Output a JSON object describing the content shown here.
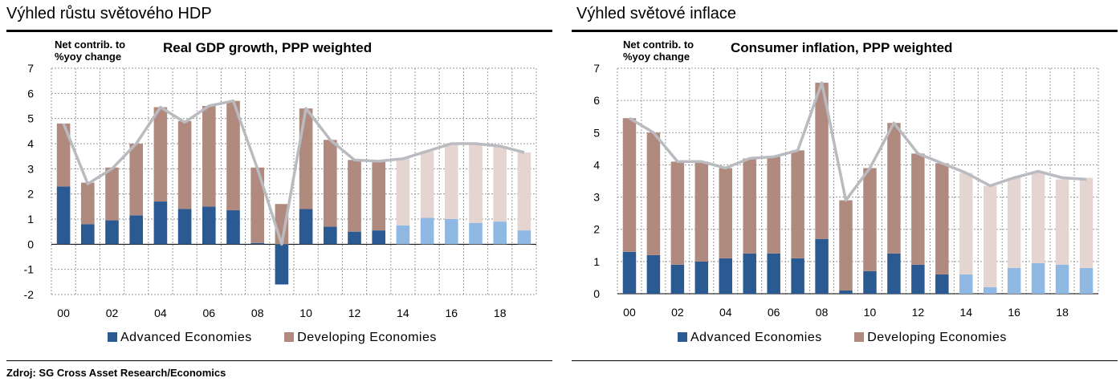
{
  "source": "Zdroj: SG Cross Asset Research/Economics",
  "panels": [
    {
      "panel_title": "Výhled růstu světového HDP",
      "chart_title": "Real GDP growth, PPP weighted",
      "unit_label": [
        "Net contrib. to",
        "%yoy change"
      ],
      "legend": [
        "Advanced Economies",
        "Developing Economies"
      ]
    },
    {
      "panel_title": "Výhled světové inflace",
      "chart_title": "Consumer inflation, PPP weighted",
      "unit_label": [
        "Net contrib. to",
        "%yoy change"
      ],
      "legend": [
        "Advanced  Economies",
        "Developing  Economies"
      ]
    }
  ],
  "colors": {
    "advanced": "#2b5a93",
    "advanced_forecast": "#8fb8e2",
    "developing": "#b08a7e",
    "developing_forecast": "#e4d5d1",
    "total_line": "#b9bbc1",
    "grid": "#9a9a9a"
  },
  "chart_data": [
    {
      "type": "bar",
      "stacked": true,
      "title": "Real GDP growth, PPP weighted",
      "ylabel": "Net contrib. to %yoy change",
      "ylim": [
        -2,
        7
      ],
      "yticks": [
        "-2",
        "-1",
        "0",
        "1",
        "2",
        "3",
        "4",
        "5",
        "6",
        "7"
      ],
      "categories": [
        "00",
        "01",
        "02",
        "03",
        "04",
        "05",
        "06",
        "07",
        "08",
        "09",
        "10",
        "11",
        "12",
        "13",
        "14",
        "15",
        "16",
        "17",
        "18",
        "19"
      ],
      "xtick_labels": [
        "00",
        "02",
        "04",
        "06",
        "08",
        "10",
        "12",
        "14",
        "16",
        "18"
      ],
      "forecast_from": "14",
      "grid": true,
      "legend_position": "bottom",
      "series": [
        {
          "name": "Advanced Economies",
          "values": [
            2.3,
            0.8,
            0.95,
            1.15,
            1.7,
            1.4,
            1.5,
            1.35,
            0.05,
            -1.6,
            1.4,
            0.7,
            0.5,
            0.55,
            0.75,
            1.05,
            1.0,
            0.85,
            0.9,
            0.55
          ]
        },
        {
          "name": "Developing Economies",
          "values": [
            2.5,
            1.65,
            2.1,
            2.85,
            3.75,
            3.5,
            4.0,
            4.35,
            3.0,
            1.6,
            4.0,
            3.45,
            2.85,
            2.75,
            2.65,
            2.65,
            3.0,
            3.15,
            3.0,
            3.1
          ]
        },
        {
          "name": "Total",
          "type": "line",
          "values": [
            4.8,
            2.4,
            3.0,
            4.0,
            5.45,
            4.85,
            5.5,
            5.7,
            3.0,
            0.0,
            5.4,
            4.15,
            3.35,
            3.3,
            3.4,
            3.7,
            4.0,
            4.0,
            3.9,
            3.65
          ]
        }
      ]
    },
    {
      "type": "bar",
      "stacked": true,
      "title": "Consumer inflation, PPP weighted",
      "ylabel": "Net contrib. to %yoy change",
      "ylim": [
        0,
        7
      ],
      "yticks": [
        "0",
        "1",
        "2",
        "3",
        "4",
        "5",
        "6",
        "7"
      ],
      "categories": [
        "00",
        "01",
        "02",
        "03",
        "04",
        "05",
        "06",
        "07",
        "08",
        "09",
        "10",
        "11",
        "12",
        "13",
        "14",
        "15",
        "16",
        "17",
        "18",
        "19"
      ],
      "xtick_labels": [
        "00",
        "02",
        "04",
        "06",
        "08",
        "10",
        "12",
        "14",
        "16",
        "18"
      ],
      "forecast_from": "14",
      "grid": true,
      "legend_position": "bottom",
      "series": [
        {
          "name": "Advanced Economies",
          "values": [
            1.3,
            1.2,
            0.9,
            1.0,
            1.1,
            1.25,
            1.25,
            1.1,
            1.7,
            0.1,
            0.7,
            1.25,
            0.9,
            0.6,
            0.6,
            0.2,
            0.8,
            0.95,
            0.9,
            0.8
          ]
        },
        {
          "name": "Developing Economies",
          "values": [
            4.15,
            3.8,
            3.2,
            3.1,
            2.8,
            2.95,
            3.0,
            3.35,
            4.85,
            2.8,
            3.2,
            4.05,
            3.45,
            3.45,
            3.15,
            3.15,
            2.8,
            2.85,
            2.65,
            2.8
          ]
        },
        {
          "name": "Total",
          "type": "line",
          "values": [
            5.45,
            5.0,
            4.1,
            4.1,
            3.9,
            4.2,
            4.25,
            4.45,
            6.55,
            2.9,
            3.9,
            5.3,
            4.35,
            4.05,
            3.75,
            3.35,
            3.6,
            3.8,
            3.6,
            3.55
          ]
        }
      ]
    }
  ]
}
